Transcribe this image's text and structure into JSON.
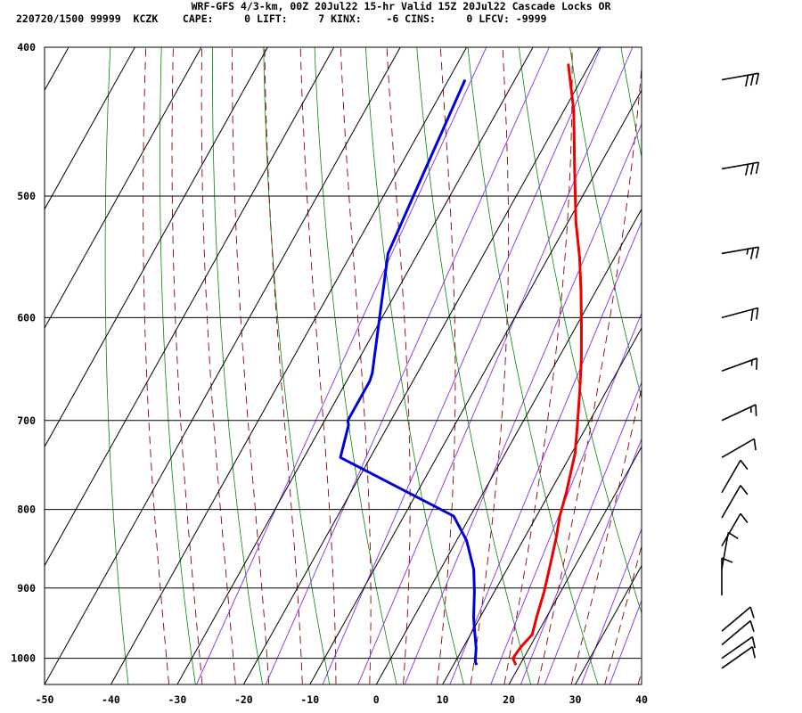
{
  "header": {
    "line1": "WRF-GFS 4/3-km, 00Z 20Jul22 15-hr Valid 15Z 20Jul22 Cascade Locks OR",
    "line2": "220720/1500 99999  KCZK    CAPE:     0 LIFT:     7 KINX:    -6 CINS:     0 LFCV: -9999"
  },
  "chart_data": {
    "type": "line",
    "title": "WRF-GFS 4/3-km, 00Z 20Jul22 15-hr Valid 15Z 20Jul22 Cascade Locks OR",
    "xlabel": "",
    "ylabel": "",
    "x_ticks": [
      -50,
      -40,
      -30,
      -20,
      -10,
      0,
      10,
      20,
      30,
      40
    ],
    "y_ticks": [
      400,
      500,
      600,
      700,
      800,
      900,
      1000
    ],
    "xlim": [
      -50,
      40
    ],
    "ylim_hpa": [
      1040,
      400
    ],
    "log_pressure_axis": true,
    "grid": true,
    "colors": {
      "temperature": "#ee0000",
      "dewpoint": "#0000dd",
      "dry_adiabats": "#008800",
      "moist_adiabats": "#8b0000",
      "mixing_ratio": "#8a2be2",
      "grid": "#000000"
    },
    "series": [
      {
        "name": "",
        "role": "temperature",
        "points": [
          [
            19.4,
            1010
          ],
          [
            18.4,
            1000
          ],
          [
            18.6,
            985
          ],
          [
            19.3,
            965
          ],
          [
            18.5,
            940
          ],
          [
            17.5,
            905
          ],
          [
            16.0,
            865
          ],
          [
            14.8,
            835
          ],
          [
            13.5,
            808
          ],
          [
            12.5,
            780
          ],
          [
            10.5,
            735
          ],
          [
            8.5,
            705
          ],
          [
            6.0,
            670
          ],
          [
            3.5,
            638
          ],
          [
            0.8,
            608
          ],
          [
            -2.2,
            577
          ],
          [
            -5.3,
            548
          ],
          [
            -8.8,
            520
          ],
          [
            -13.5,
            480
          ],
          [
            -18.5,
            440
          ],
          [
            -23.3,
            410
          ]
        ]
      },
      {
        "name": "",
        "role": "dewpoint",
        "points": [
          [
            13.5,
            1010
          ],
          [
            13.0,
            1005
          ],
          [
            12.0,
            985
          ],
          [
            10.0,
            955
          ],
          [
            9.0,
            940
          ],
          [
            7.0,
            905
          ],
          [
            5.0,
            875
          ],
          [
            1.5,
            838
          ],
          [
            -2.5,
            808
          ],
          [
            -24.5,
            740
          ],
          [
            -26.0,
            705
          ],
          [
            -26.5,
            700
          ],
          [
            -26.5,
            660
          ],
          [
            -26.8,
            652
          ],
          [
            -34.5,
            545
          ],
          [
            -35.5,
            500
          ],
          [
            -37.5,
            420
          ]
        ]
      }
    ],
    "wind_barbs": [
      {
        "p": 420,
        "dir": 260,
        "speed_kt": 30
      },
      {
        "p": 480,
        "dir": 260,
        "speed_kt": 30
      },
      {
        "p": 545,
        "dir": 260,
        "speed_kt": 25
      },
      {
        "p": 600,
        "dir": 255,
        "speed_kt": 20
      },
      {
        "p": 650,
        "dir": 250,
        "speed_kt": 15
      },
      {
        "p": 700,
        "dir": 245,
        "speed_kt": 15
      },
      {
        "p": 740,
        "dir": 240,
        "speed_kt": 10
      },
      {
        "p": 780,
        "dir": 210,
        "speed_kt": 10
      },
      {
        "p": 810,
        "dir": 210,
        "speed_kt": 10
      },
      {
        "p": 845,
        "dir": 210,
        "speed_kt": 10
      },
      {
        "p": 875,
        "dir": 190,
        "speed_kt": 10
      },
      {
        "p": 910,
        "dir": 180,
        "speed_kt": 10
      },
      {
        "p": 960,
        "dir": 230,
        "speed_kt": 10
      },
      {
        "p": 980,
        "dir": 230,
        "speed_kt": 10
      },
      {
        "p": 1000,
        "dir": 235,
        "speed_kt": 10
      },
      {
        "p": 1015,
        "dir": 235,
        "speed_kt": 10
      }
    ]
  }
}
